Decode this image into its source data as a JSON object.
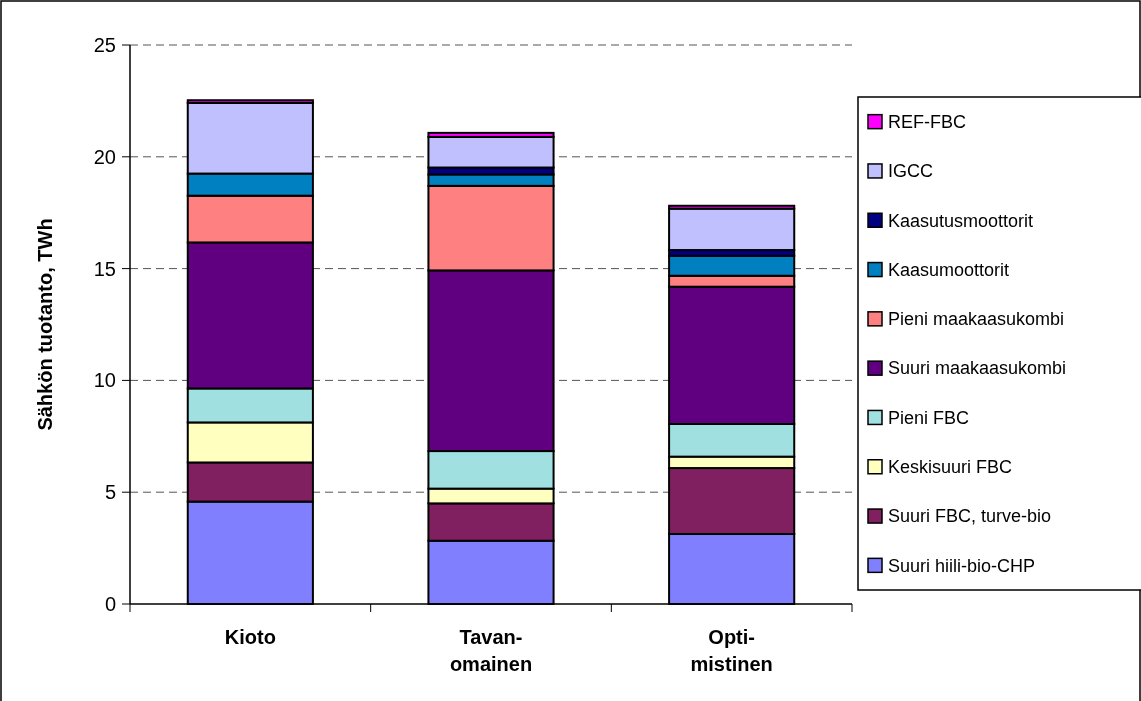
{
  "chart_data": {
    "type": "bar",
    "stacked": true,
    "ylabel": "Sähkön tuotanto, TWh",
    "categories": [
      "Kioto",
      "Tavan-\nomainen",
      "Opti-\nmistinen"
    ],
    "ylim": [
      0,
      25
    ],
    "yticks": [
      0,
      5,
      10,
      15,
      20,
      25
    ],
    "grid": "y",
    "legend": "right",
    "series": [
      {
        "name": "Suuri hiili-bio-CHP",
        "color": "#8080ff",
        "values": [
          4.58,
          2.83,
          3.13
        ]
      },
      {
        "name": "Suuri FBC, turve-bio",
        "color": "#802060",
        "values": [
          1.75,
          1.67,
          2.95
        ]
      },
      {
        "name": "Keskisuuri FBC",
        "color": "#ffffc0",
        "values": [
          1.79,
          0.66,
          0.51
        ]
      },
      {
        "name": "Pieni FBC",
        "color": "#a0e0e0",
        "values": [
          1.52,
          1.68,
          1.46
        ]
      },
      {
        "name": "Suuri maakaasukombi",
        "color": "#600080",
        "values": [
          6.53,
          8.08,
          6.14
        ]
      },
      {
        "name": "Pieni maakaasukombi",
        "color": "#ff8080",
        "values": [
          2.09,
          3.78,
          0.49
        ]
      },
      {
        "name": "Kaasumoottorit",
        "color": "#0080c0",
        "values": [
          0.99,
          0.51,
          0.89
        ]
      },
      {
        "name": "Kaasutusmoottorit",
        "color": "#000080",
        "values": [
          0,
          0.31,
          0.26
        ]
      },
      {
        "name": "IGCC",
        "color": "#c0c0ff",
        "values": [
          3.16,
          1.37,
          1.85
        ]
      },
      {
        "name": "REF-FBC",
        "color": "#ff00ff",
        "values": [
          0.12,
          0.18,
          0.13
        ]
      }
    ]
  }
}
